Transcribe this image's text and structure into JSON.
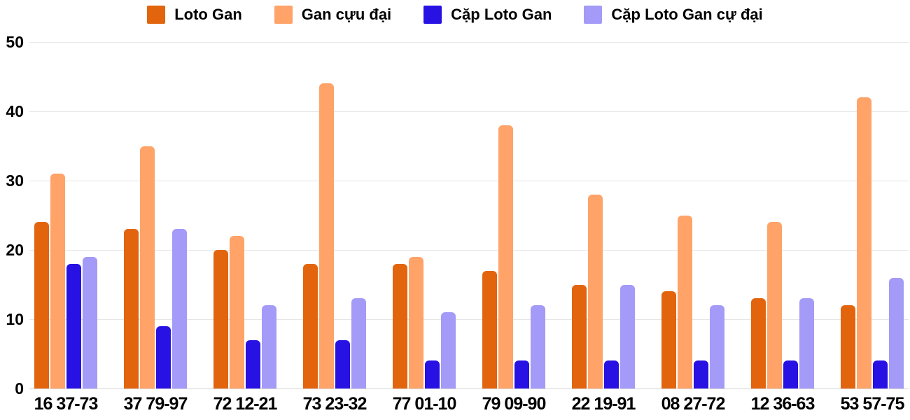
{
  "chart_data": {
    "type": "bar",
    "title": "",
    "categories": [
      "16 37-73",
      "37 79-97",
      "72 12-21",
      "73 23-32",
      "77 01-10",
      "79 09-90",
      "22 19-91",
      "08 27-72",
      "12 36-63",
      "53 57-75"
    ],
    "series": [
      {
        "name": "Loto Gan",
        "color": "#e2650e",
        "values": [
          24,
          23,
          20,
          18,
          18,
          17,
          15,
          14,
          13,
          12
        ]
      },
      {
        "name": "Gan cựu đại",
        "color": "#ffa368",
        "values": [
          31,
          35,
          22,
          44,
          19,
          38,
          28,
          25,
          24,
          42
        ]
      },
      {
        "name": "Cặp Loto Gan",
        "color": "#2712e3",
        "values": [
          18,
          9,
          7,
          7,
          4,
          4,
          4,
          4,
          4,
          4
        ]
      },
      {
        "name": "Cặp Loto Gan cự đại",
        "color": "#a49af7",
        "values": [
          19,
          23,
          12,
          13,
          11,
          12,
          15,
          12,
          13,
          16
        ]
      }
    ],
    "y_ticks": [
      0,
      10,
      20,
      30,
      40,
      50
    ],
    "ylim": [
      0,
      50
    ],
    "xlabel": "",
    "ylabel": "",
    "grid": true,
    "legend_position": "top",
    "colors": {
      "grid_line": "#e6e6e6",
      "axis_line": "#d5d5d5",
      "text": "#000000",
      "background": "#ffffff"
    }
  }
}
